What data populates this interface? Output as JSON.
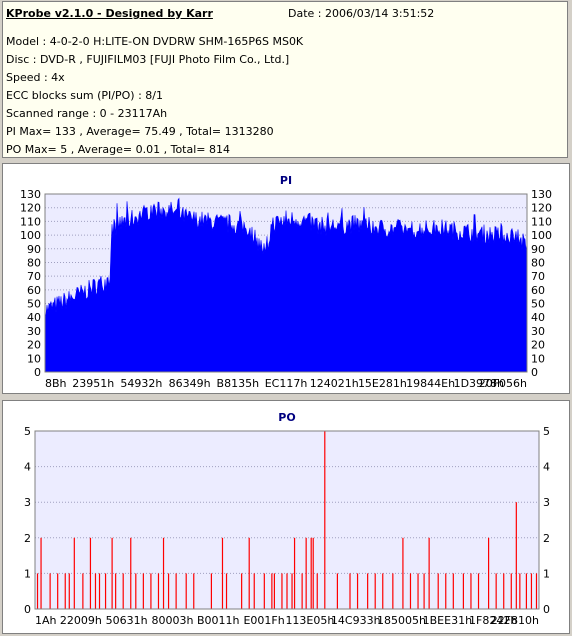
{
  "header": {
    "title": "KProbe v2.1.0 - Designed by Karr",
    "date": "Date : 2006/03/14 3:51:52",
    "lines": [
      "Model : 4-0-2-0 H:LITE-ON DVDRW SHM-165P6S MS0K",
      "Disc : DVD-R , FUJIFILM03 [FUJI Photo Film Co., Ltd.]",
      "Speed : 4x",
      "ECC blocks sum (PI/PO) : 8/1",
      "Scanned range : 0 - 23117Ah",
      "PI Max= 133 , Average= 75.49 , Total= 1313280",
      "PO Max= 5 , Average= 0.01 , Total= 814"
    ]
  },
  "colors": {
    "pi_fill": "#0000ff",
    "po_bar": "#ff0000",
    "plot_bg": "#ececff",
    "grid": "#a0a0c0"
  },
  "chart_data": [
    {
      "type": "area",
      "title": "PI",
      "ylim": [
        0,
        130
      ],
      "yticks": [
        0,
        10,
        20,
        30,
        40,
        50,
        60,
        70,
        80,
        90,
        100,
        110,
        120,
        130
      ],
      "xtick_labels": [
        "8Bh",
        "23951h",
        "54932h",
        "86349h",
        "B8135h",
        "EC117h",
        "124021h",
        "15E281h",
        "19844Eh",
        "1D3978h",
        "20F056h"
      ],
      "profile": [
        {
          "x": 0.0,
          "y": 45
        },
        {
          "x": 0.03,
          "y": 50
        },
        {
          "x": 0.06,
          "y": 55
        },
        {
          "x": 0.09,
          "y": 60
        },
        {
          "x": 0.11,
          "y": 64
        },
        {
          "x": 0.135,
          "y": 67
        },
        {
          "x": 0.139,
          "y": 105
        },
        {
          "x": 0.18,
          "y": 112
        },
        {
          "x": 0.22,
          "y": 118
        },
        {
          "x": 0.26,
          "y": 118
        },
        {
          "x": 0.3,
          "y": 112
        },
        {
          "x": 0.34,
          "y": 110
        },
        {
          "x": 0.38,
          "y": 108
        },
        {
          "x": 0.42,
          "y": 106
        },
        {
          "x": 0.44,
          "y": 96
        },
        {
          "x": 0.46,
          "y": 86
        },
        {
          "x": 0.47,
          "y": 108
        },
        {
          "x": 0.52,
          "y": 112
        },
        {
          "x": 0.58,
          "y": 106
        },
        {
          "x": 0.64,
          "y": 108
        },
        {
          "x": 0.7,
          "y": 105
        },
        {
          "x": 0.76,
          "y": 104
        },
        {
          "x": 0.82,
          "y": 105
        },
        {
          "x": 0.88,
          "y": 102
        },
        {
          "x": 0.94,
          "y": 100
        },
        {
          "x": 0.98,
          "y": 100
        },
        {
          "x": 1.0,
          "y": 90
        }
      ]
    },
    {
      "type": "bar",
      "title": "PO",
      "ylim": [
        0,
        5
      ],
      "yticks": [
        0,
        1,
        2,
        3,
        4,
        5
      ],
      "xtick_labels": [
        "1Ah",
        "22009h",
        "50631h",
        "80003h",
        "B0011h",
        "E001Fh",
        "113E05h",
        "14C933h",
        "185005h",
        "1BEE31h",
        "1F8242h",
        "22F810h"
      ],
      "bars": [
        {
          "x": 0.005,
          "v": 1
        },
        {
          "x": 0.012,
          "v": 2
        },
        {
          "x": 0.03,
          "v": 1
        },
        {
          "x": 0.045,
          "v": 1
        },
        {
          "x": 0.06,
          "v": 1
        },
        {
          "x": 0.068,
          "v": 1
        },
        {
          "x": 0.078,
          "v": 2
        },
        {
          "x": 0.095,
          "v": 1
        },
        {
          "x": 0.11,
          "v": 2
        },
        {
          "x": 0.12,
          "v": 1
        },
        {
          "x": 0.128,
          "v": 1
        },
        {
          "x": 0.14,
          "v": 1
        },
        {
          "x": 0.153,
          "v": 2
        },
        {
          "x": 0.16,
          "v": 1
        },
        {
          "x": 0.175,
          "v": 1
        },
        {
          "x": 0.19,
          "v": 2
        },
        {
          "x": 0.2,
          "v": 1
        },
        {
          "x": 0.215,
          "v": 1
        },
        {
          "x": 0.23,
          "v": 1
        },
        {
          "x": 0.245,
          "v": 1
        },
        {
          "x": 0.255,
          "v": 2
        },
        {
          "x": 0.265,
          "v": 1
        },
        {
          "x": 0.28,
          "v": 1
        },
        {
          "x": 0.3,
          "v": 1
        },
        {
          "x": 0.315,
          "v": 1
        },
        {
          "x": 0.35,
          "v": 1
        },
        {
          "x": 0.372,
          "v": 2
        },
        {
          "x": 0.38,
          "v": 1
        },
        {
          "x": 0.41,
          "v": 1
        },
        {
          "x": 0.425,
          "v": 2
        },
        {
          "x": 0.435,
          "v": 1
        },
        {
          "x": 0.455,
          "v": 1
        },
        {
          "x": 0.47,
          "v": 1
        },
        {
          "x": 0.475,
          "v": 1
        },
        {
          "x": 0.49,
          "v": 1
        },
        {
          "x": 0.5,
          "v": 1
        },
        {
          "x": 0.51,
          "v": 1
        },
        {
          "x": 0.515,
          "v": 2
        },
        {
          "x": 0.53,
          "v": 1
        },
        {
          "x": 0.538,
          "v": 2
        },
        {
          "x": 0.548,
          "v": 2
        },
        {
          "x": 0.552,
          "v": 2
        },
        {
          "x": 0.56,
          "v": 1
        },
        {
          "x": 0.575,
          "v": 5
        },
        {
          "x": 0.6,
          "v": 1
        },
        {
          "x": 0.625,
          "v": 1
        },
        {
          "x": 0.64,
          "v": 1
        },
        {
          "x": 0.66,
          "v": 1
        },
        {
          "x": 0.675,
          "v": 1
        },
        {
          "x": 0.69,
          "v": 1
        },
        {
          "x": 0.71,
          "v": 1
        },
        {
          "x": 0.73,
          "v": 2
        },
        {
          "x": 0.745,
          "v": 1
        },
        {
          "x": 0.76,
          "v": 1
        },
        {
          "x": 0.772,
          "v": 1
        },
        {
          "x": 0.782,
          "v": 2
        },
        {
          "x": 0.8,
          "v": 1
        },
        {
          "x": 0.815,
          "v": 1
        },
        {
          "x": 0.83,
          "v": 1
        },
        {
          "x": 0.85,
          "v": 1
        },
        {
          "x": 0.865,
          "v": 1
        },
        {
          "x": 0.88,
          "v": 1
        },
        {
          "x": 0.9,
          "v": 2
        },
        {
          "x": 0.915,
          "v": 1
        },
        {
          "x": 0.93,
          "v": 1
        },
        {
          "x": 0.945,
          "v": 1
        },
        {
          "x": 0.955,
          "v": 3
        },
        {
          "x": 0.962,
          "v": 1
        },
        {
          "x": 0.975,
          "v": 1
        },
        {
          "x": 0.985,
          "v": 1
        },
        {
          "x": 0.995,
          "v": 1
        }
      ]
    }
  ]
}
